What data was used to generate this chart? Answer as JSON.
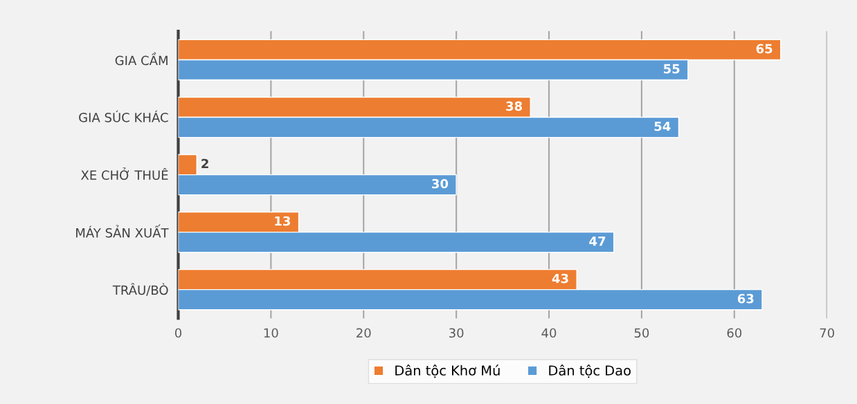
{
  "chart_data": {
    "type": "bar",
    "orientation": "horizontal",
    "categories": [
      "GIA CẦM",
      "GIA SÚC KHÁC",
      "XE CHỞ THUÊ",
      "MÁY SẢN XUẤT",
      "TRÂU/BÒ"
    ],
    "series": [
      {
        "name": "Dân tộc Khơ Mú",
        "color": "#ed7d31",
        "values": [
          65,
          38,
          2,
          13,
          43
        ]
      },
      {
        "name": "Dân tộc Dao",
        "color": "#5b9bd5",
        "values": [
          55,
          54,
          30,
          47,
          63
        ]
      }
    ],
    "xlim": [
      0,
      70
    ],
    "xticks": [
      0,
      10,
      20,
      30,
      40,
      50,
      60,
      70
    ],
    "grid": "x",
    "legend": "bottom",
    "data_labels": true
  }
}
